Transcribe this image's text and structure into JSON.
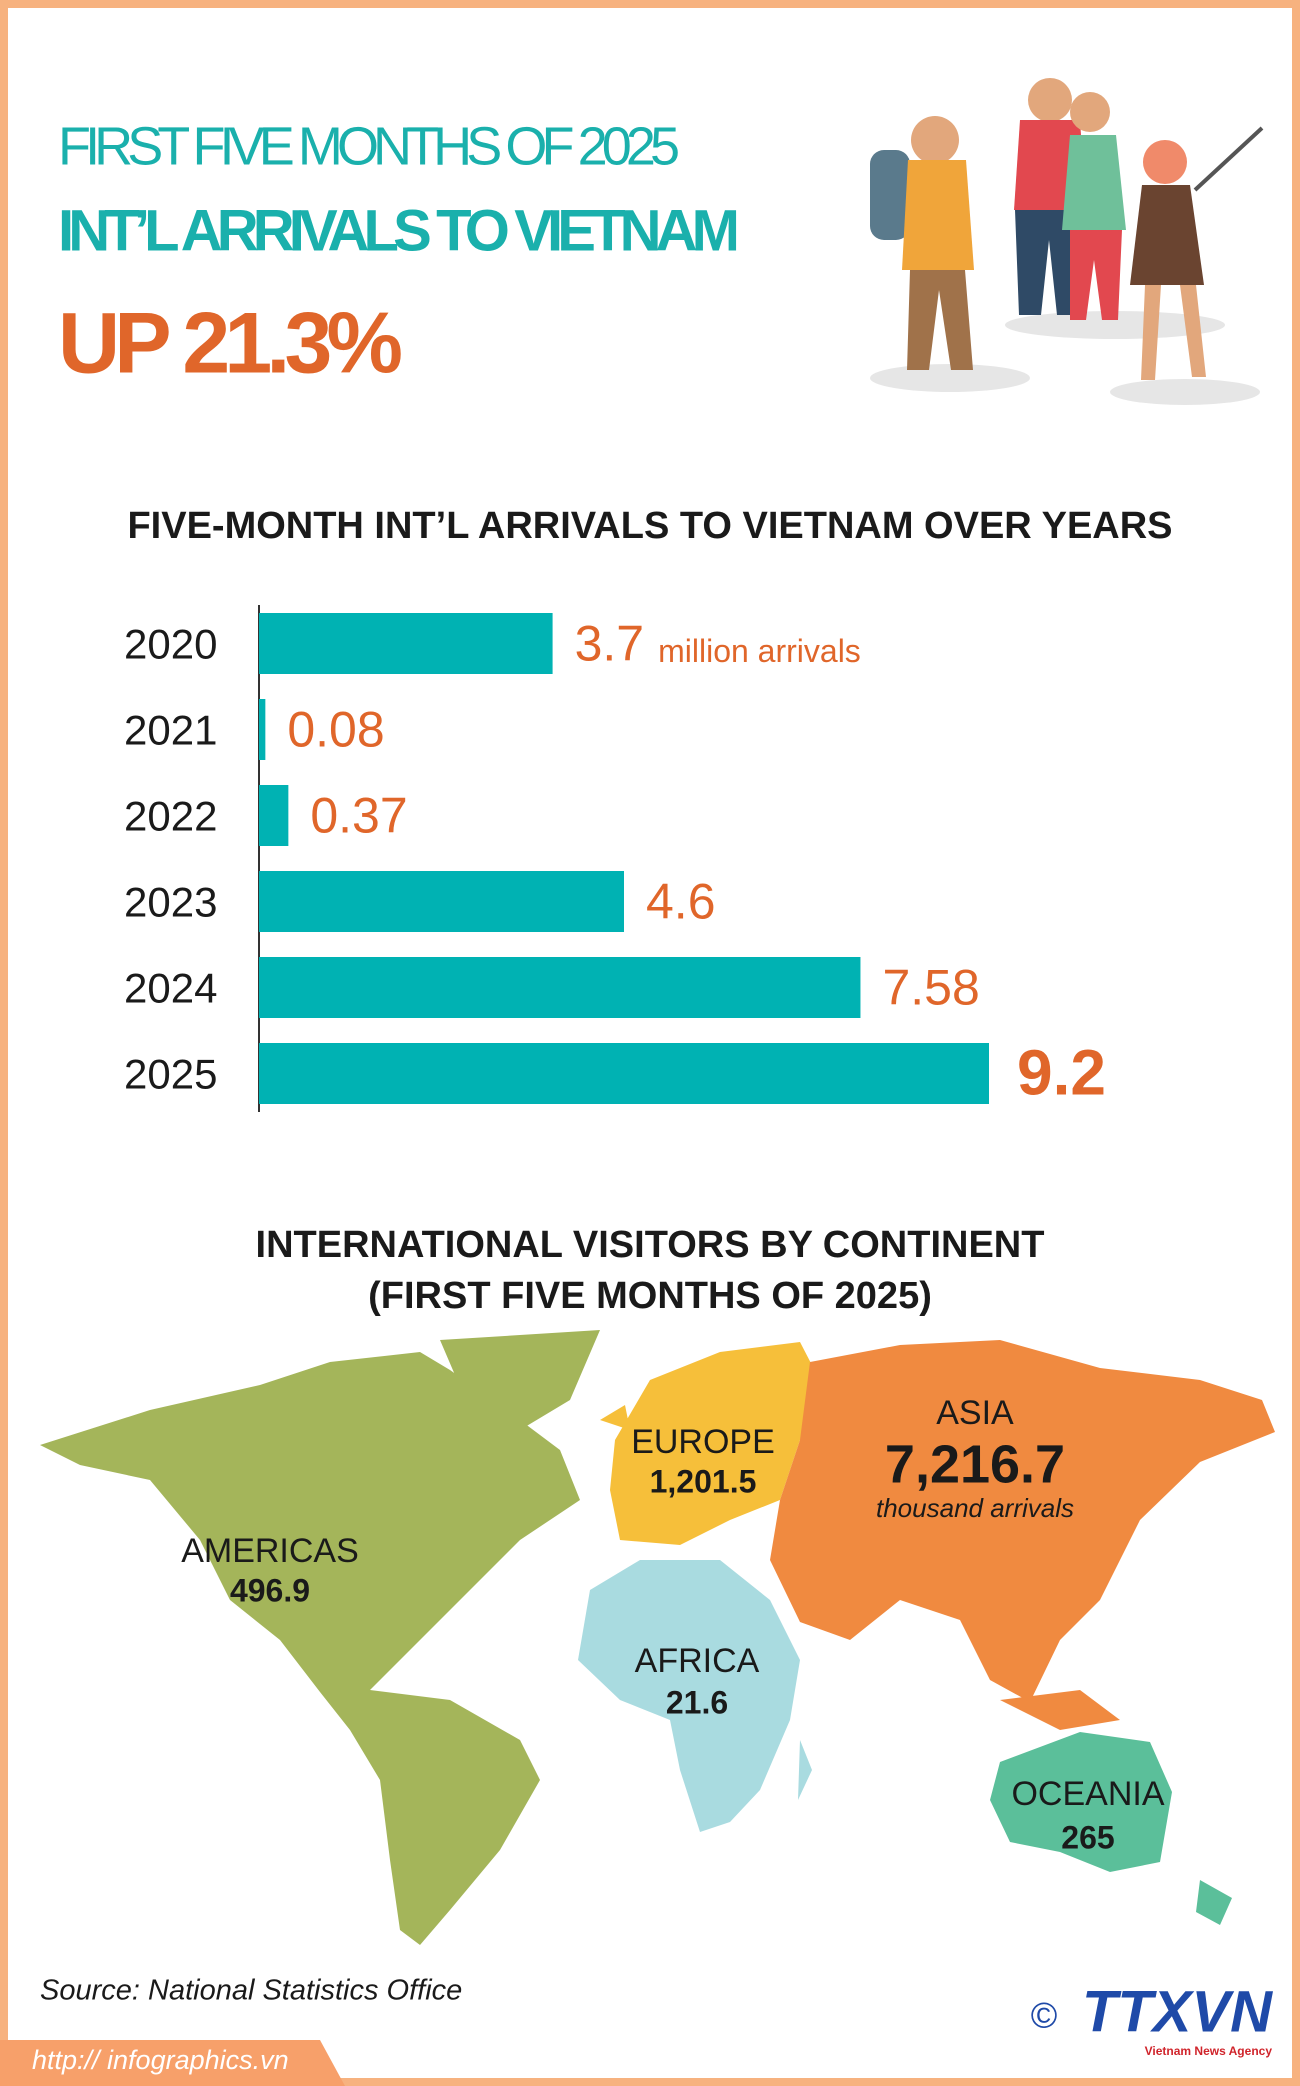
{
  "header": {
    "subtitle": "FIRST FIVE MONTHS OF 2025",
    "title": "INT’L ARRIVALS TO VIETNAM",
    "headline": "UP 21.3%"
  },
  "chart_data": {
    "type": "bar",
    "orientation": "horizontal",
    "title": "FIVE-MONTH INT’L ARRIVALS TO VIETNAM OVER YEARS",
    "categories": [
      "2020",
      "2021",
      "2022",
      "2023",
      "2024",
      "2025"
    ],
    "values": [
      3.7,
      0.08,
      0.37,
      4.6,
      7.58,
      9.2
    ],
    "unit_label": "million arrivals",
    "color": "#00b2b3",
    "label_color": "#e0662a"
  },
  "map": {
    "title": [
      "INTERNATIONAL VISITORS BY CONTINENT",
      "(FIRST FIVE MONTHS OF 2025)"
    ],
    "unit": "thousand arrivals",
    "regions": [
      {
        "name": "AMERICAS",
        "value": "496.9",
        "color": "#a4b55a"
      },
      {
        "name": "EUROPE",
        "value": "1,201.5",
        "color": "#f6bf3a"
      },
      {
        "name": "ASIA",
        "value": "7,216.7",
        "color": "#f08a40"
      },
      {
        "name": "AFRICA",
        "value": "21.6",
        "color": "#a9dbe0"
      },
      {
        "name": "OCEANIA",
        "value": "265",
        "color": "#5bbf9a"
      }
    ]
  },
  "footer": {
    "source": "Source: National Statistics Office",
    "website": "http:// infographics.vn",
    "copyright": "©",
    "logo": "TTXVN",
    "agency": "Vietnam News Agency"
  }
}
